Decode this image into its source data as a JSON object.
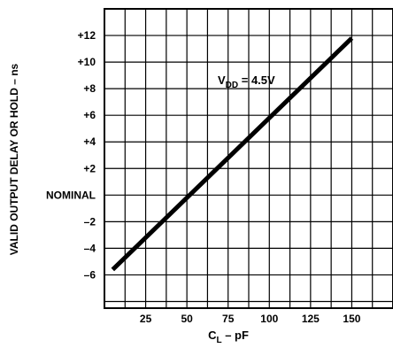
{
  "chart_data": {
    "type": "line",
    "ylabel": "VALID OUTPUT DELAY OR HOLD – ns",
    "xlabel": {
      "main": "C",
      "sub": "L",
      "rest": " – pF"
    },
    "annotation": {
      "main": "V",
      "sub": "DD",
      "rest": " = 4.5V"
    },
    "x_ticks": [
      {
        "value": 25,
        "label": "25"
      },
      {
        "value": 50,
        "label": "50"
      },
      {
        "value": 75,
        "label": "75"
      },
      {
        "value": 100,
        "label": "100"
      },
      {
        "value": 125,
        "label": "125"
      },
      {
        "value": 150,
        "label": "150"
      }
    ],
    "y_ticks": [
      {
        "value": 12,
        "label": "+12"
      },
      {
        "value": 10,
        "label": "+10"
      },
      {
        "value": 8,
        "label": "+8"
      },
      {
        "value": 6,
        "label": "+6"
      },
      {
        "value": 4,
        "label": "+4"
      },
      {
        "value": 2,
        "label": "+2"
      },
      {
        "value": 0,
        "label": "NOMINAL"
      },
      {
        "value": -2,
        "label": "–2"
      },
      {
        "value": -4,
        "label": "–4"
      },
      {
        "value": -6,
        "label": "–6"
      }
    ],
    "xlim": [
      0,
      175
    ],
    "ylim": [
      -8.5,
      14
    ],
    "grid": true,
    "series": [
      {
        "x": [
          5,
          150
        ],
        "y": [
          -5.6,
          11.8
        ]
      }
    ],
    "line_color": "#000000"
  }
}
